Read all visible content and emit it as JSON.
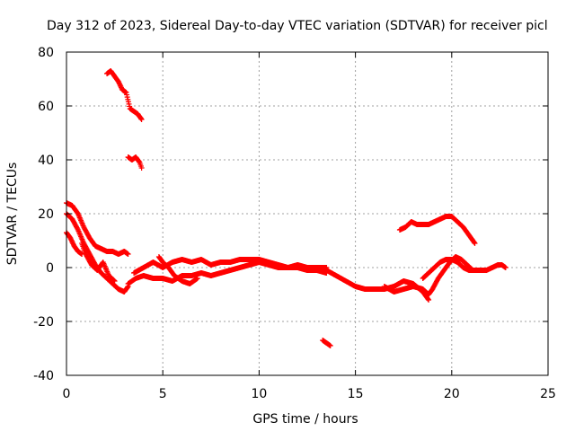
{
  "chart_data": {
    "type": "scatter",
    "title": "Day 312 of 2023, Sidereal Day-to-day VTEC variation (SDTVAR) for receiver picl",
    "xlabel": "GPS time / hours",
    "ylabel": "SDTVAR / TECUs",
    "xlim": [
      0,
      25
    ],
    "ylim": [
      -40,
      80
    ],
    "xticks": [
      0,
      5,
      10,
      15,
      20,
      25
    ],
    "yticks": [
      -40,
      -20,
      0,
      20,
      40,
      60,
      80
    ],
    "grid": true,
    "legend": "none",
    "marker": "plus",
    "series": [
      {
        "name": "SDTVAR",
        "color": "#ff0000",
        "segments": [
          [
            [
              2.1,
              72
            ],
            [
              2.3,
              73
            ],
            [
              2.5,
              71
            ],
            [
              2.7,
              69
            ],
            [
              2.9,
              66
            ],
            [
              3.1,
              65
            ],
            [
              3.3,
              59
            ],
            [
              3.5,
              58
            ],
            [
              3.7,
              57
            ],
            [
              3.9,
              55
            ]
          ],
          [
            [
              3.2,
              41
            ],
            [
              3.4,
              40
            ],
            [
              3.6,
              41
            ],
            [
              3.8,
              39
            ],
            [
              3.9,
              37
            ]
          ],
          [
            [
              0.0,
              24
            ],
            [
              0.3,
              23
            ],
            [
              0.6,
              20
            ],
            [
              0.9,
              15
            ],
            [
              1.2,
              11
            ],
            [
              1.5,
              8
            ],
            [
              1.8,
              7
            ],
            [
              2.1,
              6
            ],
            [
              2.4,
              6
            ],
            [
              2.7,
              5
            ],
            [
              3.0,
              6
            ],
            [
              3.2,
              5
            ]
          ],
          [
            [
              0.0,
              20
            ],
            [
              0.3,
              18
            ],
            [
              0.6,
              14
            ],
            [
              0.9,
              9
            ],
            [
              1.2,
              5
            ],
            [
              1.5,
              1
            ],
            [
              1.8,
              -2
            ],
            [
              2.1,
              -4
            ],
            [
              2.4,
              -6
            ],
            [
              2.7,
              -8
            ],
            [
              3.0,
              -9
            ],
            [
              3.2,
              -7
            ]
          ],
          [
            [
              0.0,
              13
            ],
            [
              0.2,
              11
            ],
            [
              0.4,
              8
            ],
            [
              0.6,
              6
            ],
            [
              0.8,
              5
            ]
          ],
          [
            [
              0.8,
              9
            ],
            [
              1.0,
              5
            ],
            [
              1.3,
              1
            ],
            [
              1.6,
              -1
            ],
            [
              1.9,
              2
            ],
            [
              2.2,
              -3
            ],
            [
              2.5,
              -5
            ]
          ],
          [
            [
              3.2,
              -6
            ],
            [
              3.6,
              -4
            ],
            [
              4.0,
              -3
            ],
            [
              4.5,
              -4
            ],
            [
              5.0,
              -4
            ],
            [
              5.5,
              -5
            ],
            [
              6.0,
              -3
            ],
            [
              6.5,
              -3
            ],
            [
              7.0,
              -2
            ],
            [
              7.5,
              -3
            ],
            [
              8.0,
              -2
            ],
            [
              8.5,
              -1
            ],
            [
              9.0,
              0
            ],
            [
              9.5,
              1
            ],
            [
              10.0,
              2
            ],
            [
              10.5,
              1
            ],
            [
              11.0,
              0
            ],
            [
              11.5,
              0
            ],
            [
              12.0,
              0
            ],
            [
              12.5,
              -1
            ],
            [
              13.0,
              -1
            ],
            [
              13.5,
              -2
            ]
          ],
          [
            [
              3.5,
              -2
            ],
            [
              4.0,
              0
            ],
            [
              4.5,
              2
            ],
            [
              5.0,
              0
            ],
            [
              5.5,
              2
            ],
            [
              6.0,
              3
            ],
            [
              6.5,
              2
            ],
            [
              7.0,
              3
            ],
            [
              7.5,
              1
            ],
            [
              8.0,
              2
            ],
            [
              8.5,
              2
            ],
            [
              9.0,
              3
            ],
            [
              9.5,
              3
            ],
            [
              10.0,
              3
            ],
            [
              10.5,
              2
            ],
            [
              11.0,
              1
            ],
            [
              11.5,
              0
            ],
            [
              12.0,
              1
            ],
            [
              12.5,
              0
            ],
            [
              13.0,
              0
            ],
            [
              13.5,
              0
            ]
          ],
          [
            [
              4.8,
              4
            ],
            [
              5.0,
              2
            ],
            [
              5.3,
              0
            ],
            [
              5.6,
              -3
            ],
            [
              6.0,
              -5
            ],
            [
              6.4,
              -6
            ],
            [
              6.8,
              -4
            ]
          ],
          [
            [
              13.3,
              -27
            ],
            [
              13.5,
              -28
            ],
            [
              13.7,
              -29
            ]
          ],
          [
            [
              13.5,
              -1
            ],
            [
              14.0,
              -3
            ],
            [
              14.5,
              -5
            ],
            [
              15.0,
              -7
            ],
            [
              15.5,
              -8
            ],
            [
              16.0,
              -8
            ],
            [
              16.5,
              -8
            ],
            [
              17.0,
              -7
            ],
            [
              17.5,
              -5
            ],
            [
              18.0,
              -6
            ],
            [
              18.5,
              -9
            ],
            [
              18.8,
              -12
            ]
          ],
          [
            [
              16.5,
              -7
            ],
            [
              17.0,
              -9
            ],
            [
              17.5,
              -8
            ],
            [
              18.0,
              -7
            ],
            [
              18.5,
              -8
            ],
            [
              18.8,
              -10
            ],
            [
              19.0,
              -8
            ],
            [
              19.3,
              -4
            ],
            [
              19.6,
              -1
            ],
            [
              19.9,
              2
            ],
            [
              20.2,
              4
            ],
            [
              20.5,
              3
            ],
            [
              20.8,
              1
            ],
            [
              21.1,
              -1
            ]
          ],
          [
            [
              18.5,
              -4
            ],
            [
              18.8,
              -2
            ],
            [
              19.1,
              0
            ],
            [
              19.4,
              2
            ],
            [
              19.7,
              3
            ],
            [
              20.0,
              3
            ],
            [
              20.3,
              2
            ],
            [
              20.6,
              0
            ],
            [
              20.9,
              -1
            ],
            [
              21.2,
              -1
            ]
          ],
          [
            [
              21.2,
              -1
            ],
            [
              21.5,
              -1
            ],
            [
              21.8,
              -1
            ],
            [
              22.1,
              0
            ],
            [
              22.4,
              1
            ],
            [
              22.6,
              1
            ],
            [
              22.8,
              0
            ]
          ],
          [
            [
              17.3,
              14
            ],
            [
              17.6,
              15
            ],
            [
              17.9,
              17
            ],
            [
              18.2,
              16
            ],
            [
              18.5,
              16
            ],
            [
              18.8,
              16
            ],
            [
              19.1,
              17
            ],
            [
              19.4,
              18
            ],
            [
              19.7,
              19
            ],
            [
              20.0,
              19
            ],
            [
              20.3,
              17
            ],
            [
              20.6,
              15
            ],
            [
              20.9,
              12
            ],
            [
              21.2,
              9
            ]
          ]
        ]
      }
    ]
  }
}
